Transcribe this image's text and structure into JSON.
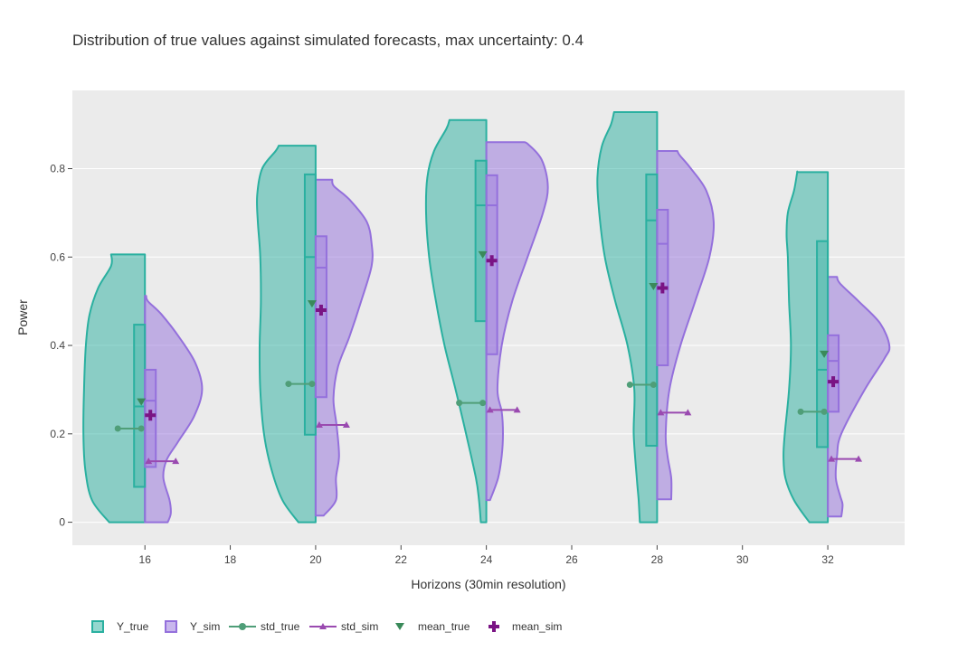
{
  "chart_data": {
    "type": "violin",
    "title": "Distribution of true values against simulated forecasts, max uncertainty: 0.4",
    "xlabel": "Horizons (30min resolution)",
    "ylabel": "Power",
    "x_ticks": [
      16,
      18,
      20,
      22,
      24,
      26,
      28,
      30,
      32
    ],
    "y_ticks": [
      0,
      0.2,
      0.4,
      0.6,
      0.8
    ],
    "y_tick_labels": [
      "0",
      "0.2",
      "0.4",
      "0.6",
      "0.8"
    ],
    "xlim": [
      14.3,
      33.8
    ],
    "ylim": [
      -0.052,
      0.977
    ],
    "grid": true,
    "legend_position": "bottom-left, horizontal",
    "colors": {
      "Y_true": "#2ab0a0",
      "Y_sim": "#9470dc",
      "std_true": "#4f9e78",
      "std_sim": "#9a4ab0",
      "mean_true": "#3a8a5a",
      "mean_sim": "#7a1484",
      "plot_bg": "#ebebeb"
    },
    "legend": [
      "Y_true",
      "Y_sim",
      "std_true",
      "std_sim",
      "mean_true",
      "mean_sim"
    ],
    "horizons": [
      {
        "x": 16,
        "true": {
          "min": 0,
          "max": 0.606,
          "q1": 0.08,
          "median": 0.262,
          "q3": 0.447,
          "mean": 0.272,
          "std": 0.212,
          "profile": [
            [
              0,
              0.58
            ],
            [
              0.05,
              0.86
            ],
            [
              0.12,
              0.97
            ],
            [
              0.2,
              1.0
            ],
            [
              0.3,
              0.99
            ],
            [
              0.4,
              0.96
            ],
            [
              0.47,
              0.9
            ],
            [
              0.53,
              0.76
            ],
            [
              0.58,
              0.55
            ],
            [
              0.606,
              0.55
            ]
          ]
        },
        "sim": {
          "min": 0,
          "max": 0.512,
          "q1": 0.125,
          "median": 0.275,
          "q3": 0.345,
          "mean": 0.242,
          "std": 0.138,
          "profile": [
            [
              0,
              0.37
            ],
            [
              0.02,
              0.42
            ],
            [
              0.05,
              0.4
            ],
            [
              0.1,
              0.3
            ],
            [
              0.14,
              0.35
            ],
            [
              0.18,
              0.53
            ],
            [
              0.24,
              0.8
            ],
            [
              0.3,
              0.93
            ],
            [
              0.36,
              0.82
            ],
            [
              0.42,
              0.55
            ],
            [
              0.47,
              0.27
            ],
            [
              0.5,
              0.05
            ],
            [
              0.512,
              0.02
            ]
          ]
        }
      },
      {
        "x": 20,
        "true": {
          "min": 0,
          "max": 0.852,
          "q1": 0.198,
          "median": 0.6,
          "q3": 0.787,
          "mean": 0.494,
          "std": 0.313,
          "profile": [
            [
              0,
              0.28
            ],
            [
              0.05,
              0.54
            ],
            [
              0.12,
              0.72
            ],
            [
              0.2,
              0.84
            ],
            [
              0.3,
              0.9
            ],
            [
              0.4,
              0.91
            ],
            [
              0.5,
              0.89
            ],
            [
              0.6,
              0.9
            ],
            [
              0.68,
              0.94
            ],
            [
              0.74,
              0.95
            ],
            [
              0.8,
              0.87
            ],
            [
              0.84,
              0.65
            ],
            [
              0.852,
              0.6
            ]
          ]
        },
        "sim": {
          "min": 0.015,
          "max": 0.775,
          "q1": 0.283,
          "median": 0.576,
          "q3": 0.647,
          "mean": 0.48,
          "std": 0.22,
          "profile": [
            [
              0.015,
              0.13
            ],
            [
              0.05,
              0.33
            ],
            [
              0.1,
              0.33
            ],
            [
              0.15,
              0.38
            ],
            [
              0.22,
              0.34
            ],
            [
              0.28,
              0.29
            ],
            [
              0.35,
              0.36
            ],
            [
              0.42,
              0.55
            ],
            [
              0.5,
              0.74
            ],
            [
              0.58,
              0.91
            ],
            [
              0.63,
              0.91
            ],
            [
              0.68,
              0.83
            ],
            [
              0.73,
              0.55
            ],
            [
              0.76,
              0.3
            ],
            [
              0.775,
              0.27
            ]
          ]
        }
      },
      {
        "x": 24,
        "true": {
          "min": 0,
          "max": 0.91,
          "q1": 0.455,
          "median": 0.717,
          "q3": 0.818,
          "mean": 0.605,
          "std": 0.27,
          "profile": [
            [
              0,
              0.09
            ],
            [
              0.05,
              0.12
            ],
            [
              0.1,
              0.17
            ],
            [
              0.2,
              0.33
            ],
            [
              0.3,
              0.5
            ],
            [
              0.4,
              0.68
            ],
            [
              0.5,
              0.82
            ],
            [
              0.6,
              0.93
            ],
            [
              0.7,
              0.98
            ],
            [
              0.78,
              0.96
            ],
            [
              0.84,
              0.85
            ],
            [
              0.89,
              0.65
            ],
            [
              0.91,
              0.6
            ]
          ]
        },
        "sim": {
          "min": 0.05,
          "max": 0.86,
          "q1": 0.38,
          "median": 0.717,
          "q3": 0.785,
          "mean": 0.592,
          "std": 0.254,
          "profile": [
            [
              0.05,
              0.06
            ],
            [
              0.1,
              0.19
            ],
            [
              0.15,
              0.25
            ],
            [
              0.2,
              0.27
            ],
            [
              0.25,
              0.25
            ],
            [
              0.3,
              0.18
            ],
            [
              0.4,
              0.25
            ],
            [
              0.5,
              0.42
            ],
            [
              0.6,
              0.67
            ],
            [
              0.7,
              0.92
            ],
            [
              0.76,
              1.0
            ],
            [
              0.82,
              0.9
            ],
            [
              0.855,
              0.68
            ],
            [
              0.86,
              0.6
            ]
          ]
        }
      },
      {
        "x": 28,
        "true": {
          "min": 0,
          "max": 0.928,
          "q1": 0.173,
          "median": 0.683,
          "q3": 0.787,
          "mean": 0.533,
          "std": 0.311,
          "profile": [
            [
              0,
              0.28
            ],
            [
              0.05,
              0.3
            ],
            [
              0.1,
              0.33
            ],
            [
              0.2,
              0.38
            ],
            [
              0.3,
              0.37
            ],
            [
              0.4,
              0.48
            ],
            [
              0.5,
              0.68
            ],
            [
              0.6,
              0.85
            ],
            [
              0.7,
              0.94
            ],
            [
              0.78,
              0.97
            ],
            [
              0.85,
              0.9
            ],
            [
              0.9,
              0.75
            ],
            [
              0.928,
              0.7
            ]
          ]
        },
        "sim": {
          "min": 0.052,
          "max": 0.84,
          "q1": 0.355,
          "median": 0.63,
          "q3": 0.707,
          "mean": 0.53,
          "std": 0.248,
          "profile": [
            [
              0.052,
              0.23
            ],
            [
              0.1,
              0.23
            ],
            [
              0.15,
              0.17
            ],
            [
              0.2,
              0.14
            ],
            [
              0.3,
              0.2
            ],
            [
              0.4,
              0.38
            ],
            [
              0.5,
              0.62
            ],
            [
              0.6,
              0.85
            ],
            [
              0.68,
              0.92
            ],
            [
              0.75,
              0.8
            ],
            [
              0.8,
              0.55
            ],
            [
              0.83,
              0.37
            ],
            [
              0.84,
              0.33
            ]
          ]
        }
      },
      {
        "x": 32,
        "true": {
          "min": 0,
          "max": 0.792,
          "q1": 0.17,
          "median": 0.345,
          "q3": 0.636,
          "mean": 0.38,
          "std": 0.25,
          "profile": [
            [
              0,
              0.3
            ],
            [
              0.05,
              0.55
            ],
            [
              0.1,
              0.69
            ],
            [
              0.15,
              0.72
            ],
            [
              0.2,
              0.7
            ],
            [
              0.3,
              0.63
            ],
            [
              0.4,
              0.6
            ],
            [
              0.5,
              0.63
            ],
            [
              0.6,
              0.65
            ],
            [
              0.65,
              0.67
            ],
            [
              0.7,
              0.65
            ],
            [
              0.75,
              0.55
            ],
            [
              0.79,
              0.5
            ],
            [
              0.792,
              0.5
            ]
          ]
        },
        "sim": {
          "min": 0.013,
          "max": 0.555,
          "q1": 0.25,
          "median": 0.365,
          "q3": 0.423,
          "mean": 0.318,
          "std": 0.143,
          "profile": [
            [
              0.013,
              0.22
            ],
            [
              0.04,
              0.24
            ],
            [
              0.06,
              0.2
            ],
            [
              0.1,
              0.13
            ],
            [
              0.15,
              0.15
            ],
            [
              0.2,
              0.22
            ],
            [
              0.3,
              0.6
            ],
            [
              0.37,
              0.92
            ],
            [
              0.4,
              1.0
            ],
            [
              0.45,
              0.85
            ],
            [
              0.5,
              0.5
            ],
            [
              0.54,
              0.2
            ],
            [
              0.555,
              0.15
            ]
          ]
        }
      }
    ]
  }
}
